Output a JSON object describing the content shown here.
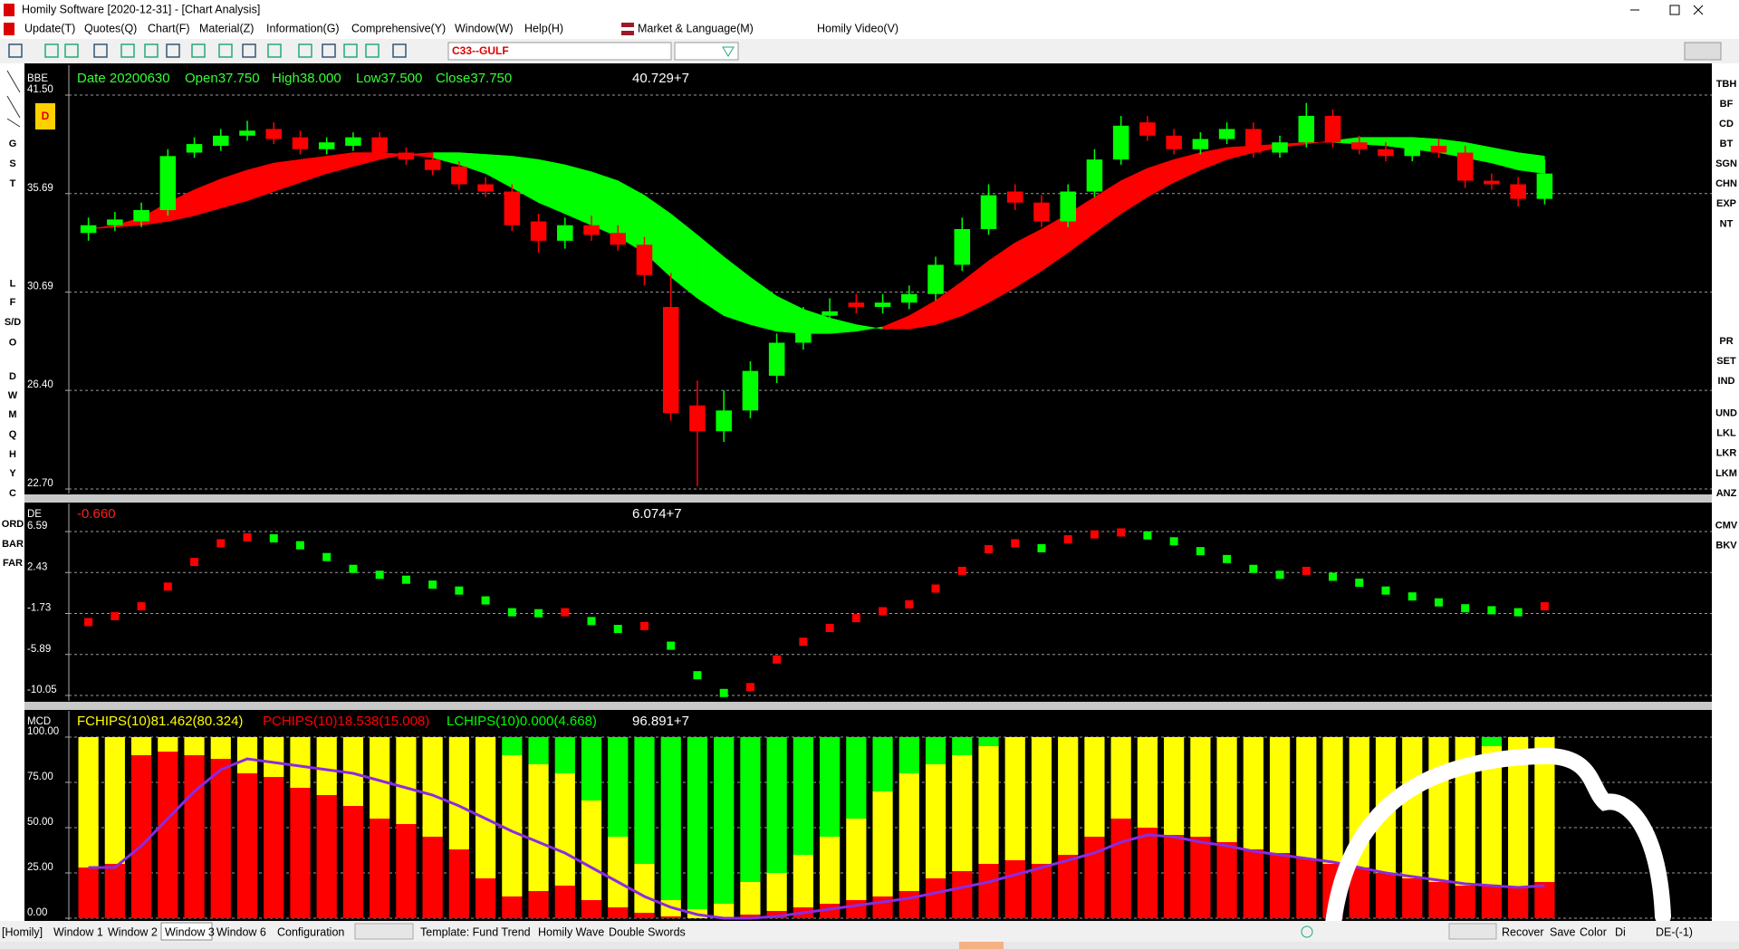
{
  "window": {
    "title": "Homily Software [2020-12-31] - [Chart Analysis]",
    "menus": [
      "Update(T)",
      "Quotes(Q)",
      "Chart(F)",
      "Material(Z)",
      "Information(G)",
      "Comprehensive(Y)",
      "Window(W)",
      "Help(H)",
      "Market & Language(M)",
      "Homily Video(V)"
    ],
    "symbol": "C33--GULF",
    "badge": "D",
    "left_tools": [
      "G",
      "S",
      "T",
      "L",
      "F",
      "S/D",
      "O",
      "D",
      "W",
      "M",
      "Q",
      "H",
      "Y",
      "C",
      "ORD",
      "BAR",
      "FAR"
    ],
    "right_tools": [
      "TBH",
      "BF",
      "CD",
      "BT",
      "SGN",
      "CHN",
      "EXP",
      "NT",
      "PR",
      "SET",
      "IND",
      "UND",
      "LKL",
      "LKR",
      "LKM",
      "ANZ",
      "CMV",
      "BKV"
    ],
    "bottom_left": [
      "[Homily]",
      "Window 1",
      "Window 2",
      "Window 3",
      "Window 6",
      "Configuration",
      "Template: Fund Trend",
      "Homily Wave",
      "Double Swords"
    ],
    "bottom_right": [
      "Recover",
      "Save",
      "Color",
      "Di",
      "DE-(-1)"
    ]
  },
  "chart_data": [
    {
      "type": "candlestick",
      "label": "BBE",
      "log_scale": true,
      "grid": true,
      "ylim": [
        22.7,
        41.5
      ],
      "yticks": [
        {
          "value": 41.5,
          "label": "41.50"
        },
        35.69,
        30.69,
        {
          "value": 26.4,
          "label": "26.40"
        },
        {
          "value": 22.7,
          "label": "22.70"
        }
      ],
      "header": [
        "Date 20200630",
        "Open37.750",
        "High38.000",
        "Low37.500",
        "Close37.750"
      ],
      "header_color": "#33ff33",
      "readout": "40.729+7",
      "up_color": "#00ff00",
      "down_color": "#ff0000",
      "band_up_color": "#ff0000",
      "band_down_color": "#00ff00",
      "open": [
        33.6,
        34.0,
        34.2,
        34.8,
        38.0,
        38.4,
        39.0,
        39.4,
        38.9,
        38.2,
        38.4,
        38.9,
        38.0,
        37.6,
        37.2,
        36.2,
        35.8,
        34.2,
        33.2,
        34.0,
        33.6,
        33.0,
        30.0,
        25.8,
        24.8,
        25.6,
        27.0,
        28.4,
        29.6,
        30.2,
        30.0,
        30.2,
        30.6,
        32.0,
        33.8,
        35.8,
        35.2,
        34.2,
        35.8,
        37.6,
        39.8,
        39.0,
        38.2,
        38.8,
        39.4,
        38.0,
        38.6,
        40.2,
        38.6,
        38.2,
        37.8,
        38.4,
        38.0,
        36.4,
        36.2,
        35.4
      ],
      "high": [
        34.4,
        34.7,
        35.2,
        38.2,
        38.9,
        39.4,
        39.9,
        39.8,
        39.3,
        38.9,
        39.2,
        39.2,
        38.3,
        38.0,
        37.5,
        36.6,
        36.2,
        34.6,
        34.4,
        34.5,
        34.0,
        33.4,
        31.6,
        26.8,
        26.4,
        27.6,
        28.8,
        30.0,
        30.4,
        30.6,
        30.6,
        31.0,
        32.4,
        34.4,
        36.2,
        36.2,
        35.6,
        36.2,
        38.2,
        40.2,
        40.2,
        39.4,
        39.2,
        39.8,
        39.8,
        39.0,
        41.0,
        40.6,
        39.0,
        38.6,
        38.8,
        38.8,
        38.4,
        36.8,
        36.6,
        37.6
      ],
      "low": [
        33.2,
        33.7,
        33.9,
        34.5,
        37.7,
        38.1,
        38.7,
        38.5,
        37.9,
        37.9,
        38.1,
        37.7,
        37.3,
        36.7,
        35.9,
        35.5,
        33.7,
        32.6,
        32.8,
        33.2,
        32.7,
        31.0,
        25.2,
        22.8,
        24.4,
        25.3,
        26.7,
        28.1,
        29.3,
        29.7,
        29.7,
        29.9,
        30.3,
        31.7,
        33.5,
        34.8,
        33.9,
        33.9,
        35.5,
        37.3,
        38.7,
        37.9,
        37.9,
        38.5,
        37.7,
        37.7,
        38.3,
        38.3,
        37.9,
        37.5,
        37.5,
        37.7,
        36.0,
        35.9,
        35.0,
        35.1
      ],
      "close": [
        34.0,
        34.3,
        34.8,
        37.8,
        38.5,
        39.0,
        39.3,
        38.8,
        38.2,
        38.6,
        38.9,
        38.0,
        37.6,
        37.0,
        36.2,
        35.8,
        34.0,
        33.2,
        34.0,
        33.5,
        33.0,
        31.5,
        25.5,
        24.8,
        25.6,
        27.2,
        28.4,
        29.6,
        29.8,
        30.0,
        30.2,
        30.6,
        32.0,
        33.8,
        35.6,
        35.2,
        34.2,
        35.8,
        37.6,
        39.6,
        39.0,
        38.2,
        38.8,
        39.4,
        38.0,
        38.6,
        40.2,
        38.6,
        38.2,
        37.8,
        38.4,
        38.0,
        36.4,
        36.2,
        35.4,
        36.8
      ],
      "band_fast": [
        33.8,
        34.0,
        34.4,
        35.2,
        35.9,
        36.5,
        37.0,
        37.4,
        37.6,
        37.8,
        38.0,
        38.0,
        37.9,
        37.7,
        37.3,
        36.8,
        36.0,
        35.2,
        34.6,
        34.0,
        33.4,
        32.6,
        31.4,
        30.4,
        29.6,
        29.2,
        28.9,
        28.8,
        28.8,
        28.9,
        29.1,
        29.6,
        30.3,
        31.2,
        32.2,
        33.1,
        33.8,
        34.6,
        35.5,
        36.4,
        37.1,
        37.6,
        38.0,
        38.3,
        38.4,
        38.5,
        38.6,
        38.6,
        38.5,
        38.4,
        38.2,
        38.0,
        37.7,
        37.4,
        37.0,
        36.8
      ],
      "band_slow": [
        33.8,
        33.9,
        34.0,
        34.2,
        34.5,
        34.9,
        35.3,
        35.8,
        36.3,
        36.8,
        37.2,
        37.6,
        37.9,
        38.0,
        38.0,
        37.9,
        37.8,
        37.6,
        37.3,
        36.9,
        36.4,
        35.6,
        34.6,
        33.5,
        32.4,
        31.4,
        30.5,
        29.9,
        29.5,
        29.2,
        29.0,
        29.0,
        29.2,
        29.6,
        30.2,
        30.9,
        31.7,
        32.6,
        33.6,
        34.6,
        35.5,
        36.3,
        37.0,
        37.6,
        38.0,
        38.3,
        38.5,
        38.7,
        38.9,
        38.9,
        38.9,
        38.8,
        38.6,
        38.3,
        38.0,
        37.8
      ]
    },
    {
      "type": "dot",
      "label": "DE",
      "grid": true,
      "ylim": [
        -10.05,
        6.59
      ],
      "yticks": [
        6.59,
        2.43,
        -1.73,
        -5.89,
        -10.05
      ],
      "header": [
        "-0.660"
      ],
      "header_color": "#ff2020",
      "readout": "6.074+7",
      "up_color": "#ff0000",
      "down_color": "#00ff00",
      "values": [
        -2.6,
        -2.0,
        -1.0,
        1.0,
        3.5,
        5.4,
        6.0,
        5.9,
        5.2,
        4.0,
        2.8,
        2.2,
        1.7,
        1.2,
        0.6,
        -0.4,
        -1.6,
        -1.7,
        -1.6,
        -2.5,
        -3.3,
        -3.0,
        -5.0,
        -8.0,
        -9.8,
        -9.2,
        -6.4,
        -4.6,
        -3.2,
        -2.2,
        -1.5,
        -0.8,
        0.8,
        2.6,
        4.8,
        5.4,
        4.9,
        5.8,
        6.3,
        6.5,
        6.2,
        5.6,
        4.6,
        3.8,
        2.8,
        2.2,
        2.6,
        2.0,
        1.4,
        0.6,
        0.0,
        -0.6,
        -1.2,
        -1.4,
        -1.6,
        -1.0
      ]
    },
    {
      "type": "stacked_bar",
      "label": "MCD",
      "grid": true,
      "ylim": [
        0,
        100
      ],
      "yticks": [
        {
          "value": 100,
          "label": "100.00"
        },
        {
          "value": 75,
          "label": "75.00"
        },
        {
          "value": 50,
          "label": "50.00"
        },
        {
          "value": 25,
          "label": "25.00"
        },
        {
          "value": 0,
          "label": "0.00"
        }
      ],
      "readout": "96.891+7",
      "series": [
        {
          "name": "PCHIPS(10)18.538(15.008)",
          "color": "#ff0000",
          "values": [
            28,
            30,
            90,
            92,
            90,
            88,
            80,
            78,
            72,
            68,
            62,
            55,
            52,
            45,
            38,
            22,
            12,
            15,
            18,
            10,
            6,
            3,
            1,
            0,
            0,
            2,
            4,
            6,
            8,
            10,
            12,
            15,
            22,
            26,
            30,
            32,
            30,
            35,
            45,
            55,
            50,
            46,
            45,
            42,
            38,
            36,
            33,
            30,
            28,
            25,
            22,
            20,
            18,
            18,
            17,
            20
          ]
        },
        {
          "name": "FCHIPS(10)81.462(80.324)",
          "color": "#ffff00",
          "values": [
            72,
            70,
            10,
            8,
            10,
            12,
            20,
            22,
            28,
            32,
            38,
            45,
            48,
            55,
            62,
            78,
            78,
            70,
            62,
            55,
            39,
            27,
            9,
            5,
            8,
            18,
            21,
            29,
            37,
            45,
            58,
            65,
            63,
            64,
            65,
            68,
            70,
            65,
            55,
            45,
            50,
            54,
            55,
            58,
            62,
            64,
            67,
            70,
            72,
            75,
            78,
            80,
            82,
            77,
            83,
            80
          ]
        },
        {
          "name": "LCHIPS(10)0.000(4.668)",
          "color": "#00ff00",
          "values": [
            0,
            0,
            0,
            0,
            0,
            0,
            0,
            0,
            0,
            0,
            0,
            0,
            0,
            0,
            0,
            0,
            10,
            15,
            20,
            35,
            55,
            70,
            90,
            95,
            92,
            80,
            75,
            65,
            55,
            45,
            30,
            20,
            15,
            10,
            5,
            0,
            0,
            0,
            0,
            0,
            0,
            0,
            0,
            0,
            0,
            0,
            0,
            0,
            0,
            0,
            0,
            0,
            0,
            5,
            0,
            0
          ]
        }
      ],
      "line": {
        "color": "#8a2be2",
        "values": [
          28,
          28,
          40,
          55,
          70,
          82,
          88,
          86,
          84,
          82,
          80,
          76,
          72,
          68,
          62,
          55,
          48,
          42,
          36,
          28,
          20,
          12,
          6,
          2,
          0,
          0,
          1,
          3,
          5,
          7,
          9,
          11,
          14,
          17,
          20,
          24,
          28,
          32,
          36,
          42,
          46,
          45,
          42,
          40,
          37,
          35,
          33,
          31,
          28,
          25,
          23,
          21,
          19,
          18,
          17,
          18
        ]
      }
    }
  ]
}
